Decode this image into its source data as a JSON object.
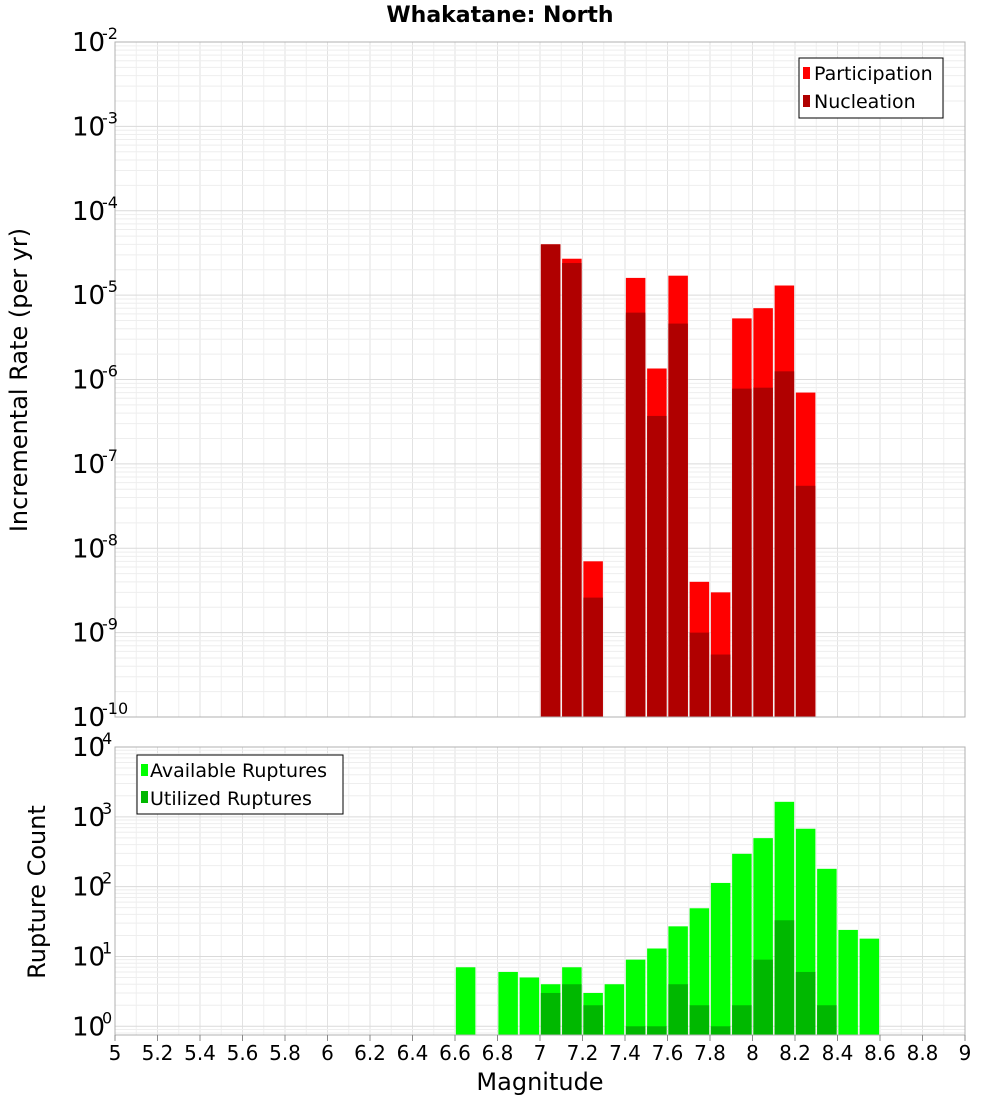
{
  "chart_data": [
    {
      "type": "bar",
      "title": "Whakatane: North",
      "xlabel": "",
      "ylabel": "Incremental Rate (per yr)",
      "yscale": "log",
      "xlim": [
        5,
        9
      ],
      "ylim": [
        1e-10,
        0.01
      ],
      "y_ticks": [
        {
          "base": "10",
          "exp": "-2"
        },
        {
          "base": "10",
          "exp": "-3"
        },
        {
          "base": "10",
          "exp": "-4"
        },
        {
          "base": "10",
          "exp": "-5"
        },
        {
          "base": "10",
          "exp": "-6"
        },
        {
          "base": "10",
          "exp": "-7"
        },
        {
          "base": "10",
          "exp": "-8"
        },
        {
          "base": "10",
          "exp": "-9"
        },
        {
          "base": "10",
          "exp": "-10"
        }
      ],
      "grid": true,
      "legend_position": "top-right",
      "series": [
        {
          "name": "Participation",
          "color": "#ff0000",
          "points": [
            {
              "x": 7.05,
              "y": 4e-05
            },
            {
              "x": 7.15,
              "y": 2.7e-05
            },
            {
              "x": 7.25,
              "y": 7e-09
            },
            {
              "x": 7.45,
              "y": 1.6e-05
            },
            {
              "x": 7.55,
              "y": 1.35e-06
            },
            {
              "x": 7.65,
              "y": 1.7e-05
            },
            {
              "x": 7.75,
              "y": 4e-09
            },
            {
              "x": 7.85,
              "y": 3e-09
            },
            {
              "x": 7.95,
              "y": 5.3e-06
            },
            {
              "x": 8.05,
              "y": 7e-06
            },
            {
              "x": 8.15,
              "y": 1.3e-05
            },
            {
              "x": 8.25,
              "y": 7e-07
            }
          ]
        },
        {
          "name": "Nucleation",
          "color": "#b00000",
          "points": [
            {
              "x": 7.05,
              "y": 4e-05
            },
            {
              "x": 7.15,
              "y": 2.4e-05
            },
            {
              "x": 7.25,
              "y": 2.6e-09
            },
            {
              "x": 7.45,
              "y": 6.2e-06
            },
            {
              "x": 7.55,
              "y": 3.7e-07
            },
            {
              "x": 7.65,
              "y": 4.6e-06
            },
            {
              "x": 7.75,
              "y": 1e-09
            },
            {
              "x": 7.85,
              "y": 5.5e-10
            },
            {
              "x": 7.95,
              "y": 7.8e-07
            },
            {
              "x": 8.05,
              "y": 8e-07
            },
            {
              "x": 8.15,
              "y": 1.25e-06
            },
            {
              "x": 8.25,
              "y": 5.5e-08
            }
          ]
        }
      ]
    },
    {
      "type": "bar",
      "title": "",
      "xlabel": "Magnitude",
      "ylabel": "Rupture Count",
      "yscale": "log",
      "xlim": [
        5,
        9
      ],
      "ylim": [
        0.75,
        10000
      ],
      "x_ticks": [
        "5",
        "5.2",
        "5.4",
        "5.6",
        "5.8",
        "6",
        "6.2",
        "6.4",
        "6.6",
        "6.8",
        "7",
        "7.2",
        "7.4",
        "7.6",
        "7.8",
        "8",
        "8.2",
        "8.4",
        "8.6",
        "8.8",
        "9"
      ],
      "y_ticks": [
        {
          "base": "10",
          "exp": "4"
        },
        {
          "base": "10",
          "exp": "3"
        },
        {
          "base": "10",
          "exp": "2"
        },
        {
          "base": "10",
          "exp": "1"
        },
        {
          "base": "10",
          "exp": "0"
        }
      ],
      "grid": true,
      "legend_position": "top-left",
      "series": [
        {
          "name": "Available Ruptures",
          "color": "#00ff00",
          "points": [
            {
              "x": 6.65,
              "y": 7
            },
            {
              "x": 6.85,
              "y": 6
            },
            {
              "x": 6.95,
              "y": 5
            },
            {
              "x": 7.05,
              "y": 4
            },
            {
              "x": 7.15,
              "y": 7
            },
            {
              "x": 7.25,
              "y": 3
            },
            {
              "x": 7.35,
              "y": 4
            },
            {
              "x": 7.45,
              "y": 9
            },
            {
              "x": 7.55,
              "y": 13
            },
            {
              "x": 7.65,
              "y": 27
            },
            {
              "x": 7.75,
              "y": 49
            },
            {
              "x": 7.85,
              "y": 113
            },
            {
              "x": 7.95,
              "y": 295
            },
            {
              "x": 8.05,
              "y": 495
            },
            {
              "x": 8.15,
              "y": 1640
            },
            {
              "x": 8.25,
              "y": 675
            },
            {
              "x": 8.35,
              "y": 180
            },
            {
              "x": 8.45,
              "y": 24
            },
            {
              "x": 8.55,
              "y": 18
            }
          ]
        },
        {
          "name": "Utilized Ruptures",
          "color": "#00b800",
          "points": [
            {
              "x": 7.05,
              "y": 3
            },
            {
              "x": 7.15,
              "y": 4
            },
            {
              "x": 7.25,
              "y": 2
            },
            {
              "x": 7.45,
              "y": 1
            },
            {
              "x": 7.55,
              "y": 1
            },
            {
              "x": 7.65,
              "y": 4
            },
            {
              "x": 7.75,
              "y": 2
            },
            {
              "x": 7.85,
              "y": 1
            },
            {
              "x": 7.95,
              "y": 2
            },
            {
              "x": 8.05,
              "y": 9
            },
            {
              "x": 8.15,
              "y": 33
            },
            {
              "x": 8.25,
              "y": 6
            },
            {
              "x": 8.35,
              "y": 2
            }
          ]
        }
      ]
    }
  ]
}
